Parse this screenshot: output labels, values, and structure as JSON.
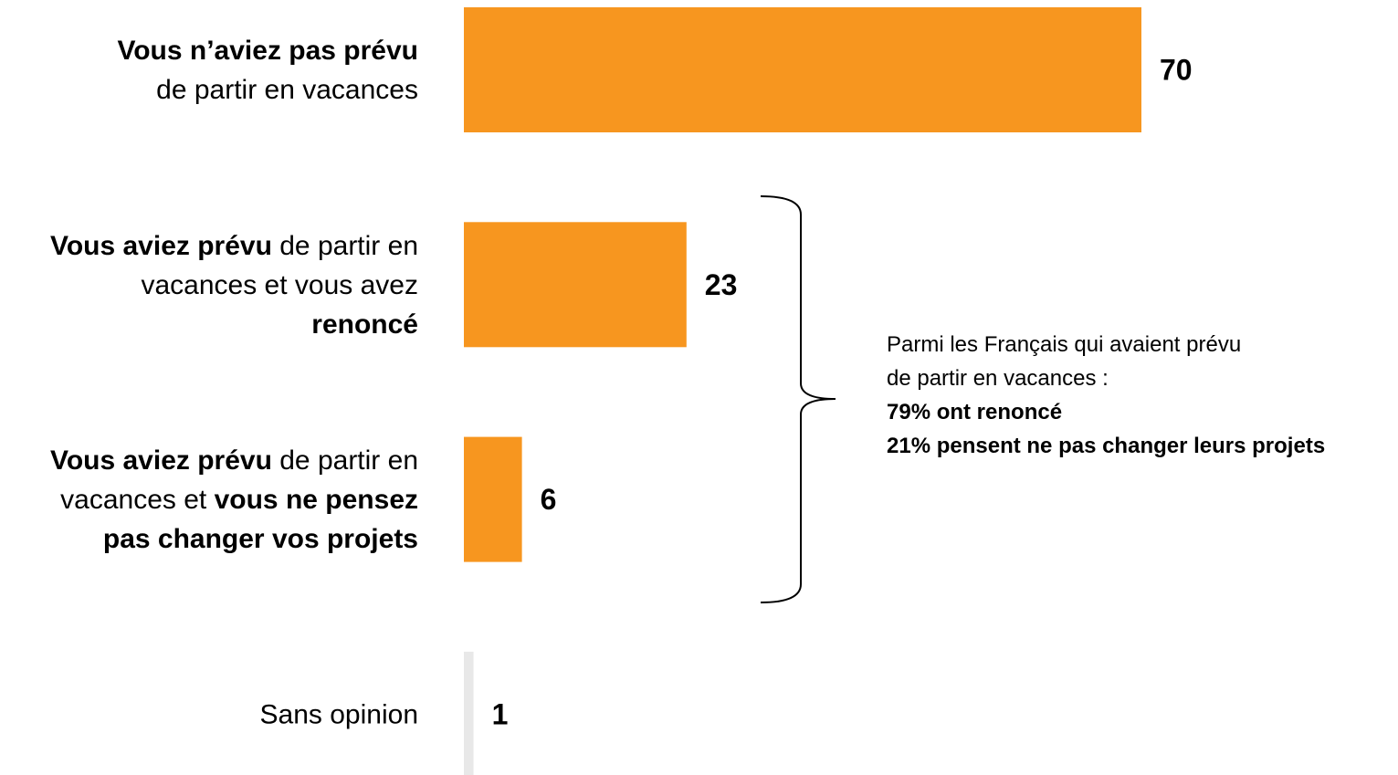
{
  "chart_data": {
    "type": "hbar",
    "categories": [
      [
        [
          {
            "text": "Vous n’aviez pas prévu",
            "bold": true
          }
        ],
        [
          {
            "text": "de partir en vacances",
            "bold": false
          }
        ]
      ],
      [
        [
          {
            "text": "Vous aviez prévu",
            "bold": true
          },
          {
            "text": " de partir en",
            "bold": false
          }
        ],
        [
          {
            "text": "vacances et vous avez",
            "bold": false
          }
        ],
        [
          {
            "text": "renoncé",
            "bold": true
          }
        ]
      ],
      [
        [
          {
            "text": "Vous aviez prévu",
            "bold": true
          },
          {
            "text": " de partir en",
            "bold": false
          }
        ],
        [
          {
            "text": "vacances et ",
            "bold": false
          },
          {
            "text": "vous ne pensez",
            "bold": true
          }
        ],
        [
          {
            "text": "pas changer vos projets",
            "bold": true
          }
        ]
      ],
      [
        [
          {
            "text": "Sans opinion",
            "bold": false
          }
        ]
      ]
    ],
    "values": [
      70,
      23,
      6,
      1
    ],
    "colors": [
      "#F7961F",
      "#F7961F",
      "#F7961F",
      "#E8E8E8"
    ],
    "xlim": [
      0,
      70
    ],
    "annotation": [
      {
        "text": "Parmi les Français qui avaient prévu",
        "bold": false
      },
      {
        "text": "de partir en vacances :",
        "bold": false
      },
      {
        "text": "79% ont renoncé",
        "bold": true
      },
      {
        "text": "21% pensent ne pas changer leurs projets",
        "bold": true
      }
    ]
  }
}
